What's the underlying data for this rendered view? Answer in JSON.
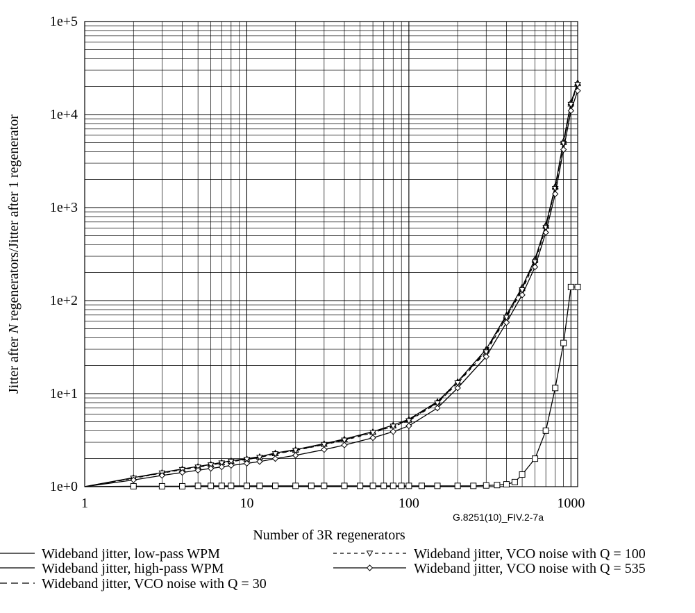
{
  "chart_data": {
    "type": "line",
    "x_scale": "log",
    "y_scale": "log",
    "xlim": [
      1,
      1100
    ],
    "ylim": [
      1,
      100000
    ],
    "grid": true,
    "x_ticks": [
      {
        "value": 1,
        "label": "1"
      },
      {
        "value": 10,
        "label": "10"
      },
      {
        "value": 100,
        "label": "100"
      },
      {
        "value": 1000,
        "label": "1000"
      }
    ],
    "y_ticks": [
      {
        "value": 1,
        "label": "1e+0"
      },
      {
        "value": 10,
        "label": "1e+1"
      },
      {
        "value": 100,
        "label": "1e+2"
      },
      {
        "value": 1000,
        "label": "1e+3"
      },
      {
        "value": 10000,
        "label": "1e+4"
      },
      {
        "value": 100000,
        "label": "1e+5"
      }
    ],
    "xlabel": "Number of 3R regenerators",
    "ylabel": "Jitter after N regenerators/Jitter after 1 regenerator",
    "ylabel_parts": [
      "Jitter after ",
      "N",
      " regenerators/Jitter after 1 regenerator"
    ],
    "figure_id": "G.8251(10)_FIV.2-7a",
    "legend_position": "bottom",
    "series": [
      {
        "name": "Wideband jitter, low-pass WPM",
        "marker": "triangle-up",
        "dash": "solid",
        "x": [
          1,
          2,
          3,
          4,
          5,
          6,
          7,
          8,
          10,
          12,
          15,
          20,
          30,
          40,
          60,
          80,
          100,
          150,
          200,
          300,
          400,
          500,
          600,
          700,
          800,
          900,
          1000,
          1100
        ],
        "y": [
          1,
          1.25,
          1.42,
          1.55,
          1.65,
          1.74,
          1.82,
          1.9,
          2.0,
          2.1,
          2.3,
          2.5,
          2.9,
          3.25,
          3.9,
          4.6,
          5.3,
          8.2,
          13.5,
          30,
          70,
          140,
          280,
          650,
          1700,
          5200,
          13500,
          22000
        ]
      },
      {
        "name": "Wideband jitter, high-pass WPM",
        "marker": "square",
        "dash": "solid",
        "x": [
          1,
          2,
          3,
          4,
          5,
          6,
          7,
          8,
          10,
          12,
          15,
          20,
          25,
          30,
          40,
          50,
          60,
          70,
          80,
          90,
          100,
          120,
          150,
          200,
          250,
          300,
          350,
          400,
          450,
          500,
          600,
          700,
          800,
          900,
          1000,
          1100
        ],
        "y": [
          1,
          1.01,
          1.01,
          1.01,
          1.02,
          1.02,
          1.02,
          1.02,
          1.02,
          1.02,
          1.02,
          1.02,
          1.02,
          1.02,
          1.02,
          1.02,
          1.02,
          1.02,
          1.02,
          1.02,
          1.02,
          1.02,
          1.02,
          1.02,
          1.02,
          1.03,
          1.04,
          1.06,
          1.12,
          1.35,
          2.0,
          4.0,
          11.5,
          35,
          140,
          140
        ]
      },
      {
        "name": "Wideband jitter, VCO noise with Q = 30",
        "marker": "triangle-up",
        "dash": "long-dash",
        "x": [
          1,
          2,
          3,
          4,
          5,
          6,
          7,
          8,
          10,
          12,
          15,
          20,
          30,
          40,
          60,
          80,
          100,
          150,
          200,
          300,
          400,
          500,
          600,
          700,
          800,
          900,
          1000,
          1100
        ],
        "y": [
          1,
          1.24,
          1.41,
          1.54,
          1.64,
          1.73,
          1.81,
          1.88,
          1.98,
          2.08,
          2.27,
          2.47,
          2.86,
          3.2,
          3.85,
          4.5,
          5.2,
          8.0,
          13.2,
          29,
          68,
          135,
          270,
          630,
          1650,
          5000,
          13000,
          21500
        ]
      },
      {
        "name": "Wideband jitter, VCO noise with Q = 100",
        "marker": "triangle-down",
        "dash": "short-dash",
        "x": [
          1,
          2,
          3,
          4,
          5,
          6,
          7,
          8,
          10,
          12,
          15,
          20,
          30,
          40,
          60,
          80,
          100,
          150,
          200,
          300,
          400,
          500,
          600,
          700,
          800,
          900,
          1000,
          1100
        ],
        "y": [
          1,
          1.23,
          1.4,
          1.52,
          1.62,
          1.71,
          1.79,
          1.86,
          1.96,
          2.06,
          2.25,
          2.45,
          2.83,
          3.15,
          3.8,
          4.45,
          5.1,
          7.9,
          13.0,
          28,
          66,
          130,
          260,
          610,
          1600,
          4900,
          12800,
          21000
        ]
      },
      {
        "name": "Wideband jitter, VCO noise with Q = 535",
        "marker": "diamond",
        "dash": "solid",
        "x": [
          1,
          2,
          3,
          4,
          5,
          6,
          7,
          8,
          10,
          12,
          15,
          20,
          30,
          40,
          60,
          80,
          100,
          150,
          200,
          300,
          400,
          500,
          600,
          700,
          800,
          900,
          1000,
          1100
        ],
        "y": [
          1,
          1.18,
          1.32,
          1.42,
          1.5,
          1.57,
          1.63,
          1.69,
          1.78,
          1.86,
          2.0,
          2.17,
          2.5,
          2.8,
          3.35,
          3.9,
          4.5,
          7.0,
          11.5,
          25,
          58,
          115,
          230,
          540,
          1400,
          4200,
          11000,
          18000
        ]
      }
    ]
  }
}
